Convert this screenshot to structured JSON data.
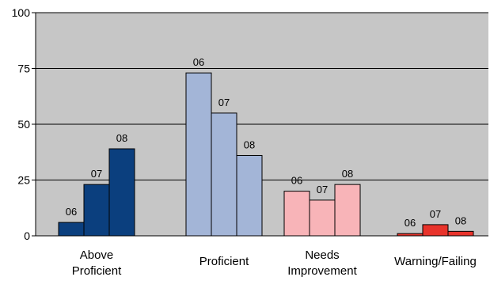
{
  "chart_data": {
    "type": "bar",
    "categories": [
      "Above Proficient",
      "Proficient",
      "Needs Improvement",
      "Warning/Failing"
    ],
    "category_label_lines": [
      [
        "Above",
        "Proficient"
      ],
      [
        "Proficient"
      ],
      [
        "Needs",
        "Improvement"
      ],
      [
        "Warning/Failing"
      ]
    ],
    "series": [
      {
        "name": "06",
        "values": [
          6,
          73,
          20,
          1
        ]
      },
      {
        "name": "07",
        "values": [
          23,
          55,
          16,
          5
        ]
      },
      {
        "name": "08",
        "values": [
          39,
          36,
          23,
          2
        ]
      }
    ],
    "bar_colors": [
      [
        "#0b3f7e",
        "#0b3f7e",
        "#0b3f7e"
      ],
      [
        "#a3b5d7",
        "#a3b5d7",
        "#a3b5d7"
      ],
      [
        "#f8b4b8",
        "#f8b4b8",
        "#f8b4b8"
      ],
      [
        "#e8332b",
        "#e8332b",
        "#e8332b"
      ]
    ],
    "plot_background": "#c6c6c6",
    "gridline_color": "#000000",
    "ylim": [
      0,
      100
    ],
    "yticks": [
      0,
      25,
      50,
      75,
      100
    ],
    "grid": true,
    "title": "",
    "xlabel": "",
    "ylabel": ""
  }
}
